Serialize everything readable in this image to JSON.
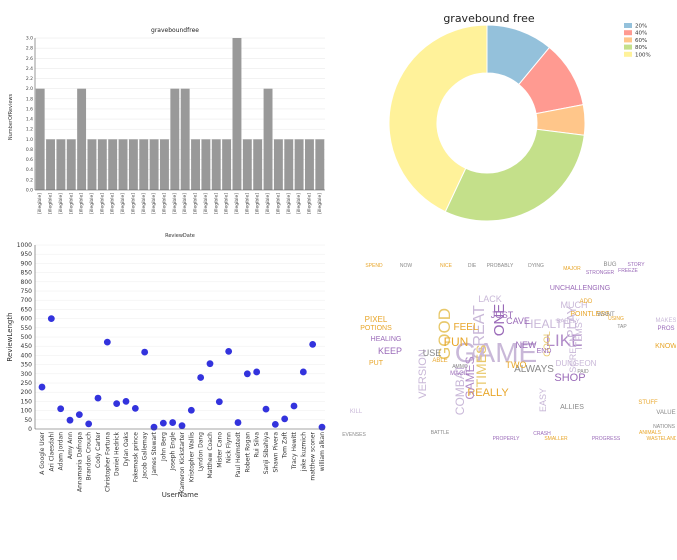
{
  "chart_data": [
    {
      "type": "bar",
      "title": "graveboundfree",
      "xlabel": "ReviewDate",
      "ylabel": "NumberOfReviews",
      "ylim": [
        0,
        3
      ],
      "yticks": [
        "0.0",
        "0.2",
        "0.4",
        "0.6",
        "0.8",
        "1.0",
        "1.2",
        "1.4",
        "1.6",
        "1.8",
        "2.0",
        "2.2",
        "2.4",
        "2.6",
        "2.8",
        "3.0"
      ],
      "categories": [
        "[illegible]",
        "[illegible]",
        "[illegible]",
        "[illegible]",
        "[illegible]",
        "[illegible]",
        "[illegible]",
        "[illegible]",
        "[illegible]",
        "[illegible]",
        "[illegible]",
        "[illegible]",
        "[illegible]",
        "[illegible]",
        "[illegible]",
        "[illegible]",
        "[illegible]",
        "[illegible]",
        "[illegible]",
        "[illegible]",
        "[illegible]",
        "[illegible]",
        "[illegible]",
        "[illegible]",
        "[illegible]",
        "[illegible]",
        "[illegible]",
        "[illegible]"
      ],
      "values": [
        2,
        1,
        1,
        1,
        2,
        1,
        1,
        1,
        1,
        1,
        1,
        1,
        1,
        2,
        2,
        1,
        1,
        1,
        1,
        3,
        1,
        1,
        2,
        1,
        1,
        1,
        1,
        1
      ],
      "bar_color": "#999999"
    },
    {
      "type": "pie",
      "donut": true,
      "title": "gravebound free",
      "legend_position": "top-right",
      "labels": [
        "20%",
        "40%",
        "60%",
        "80%",
        "100%"
      ],
      "values": [
        0.11,
        0.11,
        0.05,
        0.3,
        0.43
      ],
      "colors": [
        "#94c1db",
        "#ff9a91",
        "#ffc68a",
        "#c4e08a",
        "#fff29a"
      ]
    },
    {
      "type": "scatter",
      "xlabel": "UserName",
      "ylabel": "ReviewLength",
      "ylim": [
        0,
        1000
      ],
      "yticks": [
        "0",
        "50",
        "100",
        "150",
        "200",
        "250",
        "300",
        "350",
        "400",
        "450",
        "500",
        "550",
        "600",
        "650",
        "700",
        "750",
        "800",
        "850",
        "900",
        "950",
        "1000"
      ],
      "categories": [
        "A Google User",
        "Ari Claesdahl",
        "Adam Jordan",
        "Amy Ann",
        "Annamaria Dafnopa",
        "Brandon Crouch",
        "Cody Carter",
        "Christopher Fortuna",
        "Daniel Hedrick",
        "Dylan Oaks",
        "Fakemask prince",
        "Jacob Gallemay",
        "James Stewart",
        "John Berg",
        "Joseph Engle",
        "Kameron Kickstarter",
        "Kristopher Wallis",
        "Lyndon Dang",
        "Matthew Coach",
        "Mister Cano",
        "Nick Flynn",
        "Paul Helmstedt",
        "Robert Rogan",
        "Rui Silva",
        "Sanji Sibahiya",
        "Shawn Pivera",
        "Tom Zaft",
        "Tracy Hewitt",
        "jake kuzmich",
        "matthew sconer",
        "william alkan"
      ],
      "values": [
        228,
        600,
        110,
        48,
        78,
        28,
        168,
        472,
        138,
        150,
        112,
        418,
        10,
        32,
        35,
        18,
        102,
        280,
        355,
        148,
        422,
        35,
        300,
        310,
        108,
        25,
        55,
        125,
        310,
        460,
        10
      ],
      "point_color": "#3333dd"
    }
  ],
  "word_cloud": {
    "words": [
      {
        "text": "GAME",
        "size": 28,
        "color": "#c9b8d8"
      },
      {
        "text": "LIKE",
        "size": 17,
        "color": "#b08ac8"
      },
      {
        "text": "GOOD",
        "size": 17,
        "color": "#e8c86a"
      },
      {
        "text": "GREAT",
        "size": 16,
        "color": "#c9b8d8"
      },
      {
        "text": "ONE",
        "size": 15,
        "color": "#9a6ab8"
      },
      {
        "text": "TIMES",
        "size": 14,
        "color": "#e8c86a"
      },
      {
        "text": "FUN",
        "size": 12,
        "color": "#e8a62a"
      },
      {
        "text": "HEALTH",
        "size": 12,
        "color": "#c9b8d8"
      },
      {
        "text": "PLAY",
        "size": 13,
        "color": "#c9b8d8"
      },
      {
        "text": "REALLY",
        "size": 11,
        "color": "#e8a62a"
      },
      {
        "text": "SHOP",
        "size": 11,
        "color": "#9a6ab8"
      },
      {
        "text": "ALWAYS",
        "size": 10,
        "color": "#888888"
      },
      {
        "text": "GAMES",
        "size": 12,
        "color": "#b08ac8"
      },
      {
        "text": "VERSION",
        "size": 11,
        "color": "#c9b8d8"
      },
      {
        "text": "COMBAT",
        "size": 12,
        "color": "#c9b8d8"
      },
      {
        "text": "FEEL",
        "size": 10,
        "color": "#e8a62a"
      },
      {
        "text": "KEEP",
        "size": 9,
        "color": "#9a6ab8"
      },
      {
        "text": "JUST",
        "size": 9,
        "color": "#9a6ab8"
      },
      {
        "text": "CAVE",
        "size": 9,
        "color": "#9a6ab8"
      },
      {
        "text": "LACK",
        "size": 9,
        "color": "#c9b8d8"
      },
      {
        "text": "TWO",
        "size": 9,
        "color": "#e8a62a"
      },
      {
        "text": "USE",
        "size": 9,
        "color": "#888888"
      },
      {
        "text": "NEW",
        "size": 9,
        "color": "#9a6ab8"
      },
      {
        "text": "SCREEN",
        "size": 9,
        "color": "#c9b8d8"
      },
      {
        "text": "COOL",
        "size": 9,
        "color": "#e8c86a"
      },
      {
        "text": "EASY",
        "size": 9,
        "color": "#c9b8d8"
      },
      {
        "text": "DUNGEON",
        "size": 8,
        "color": "#c9b8d8"
      },
      {
        "text": "ITEMS",
        "size": 9,
        "color": "#c9b8d8"
      },
      {
        "text": "MUCH",
        "size": 9,
        "color": "#c9b8d8"
      },
      {
        "text": "PIXEL",
        "size": 8,
        "color": "#e8a62a"
      },
      {
        "text": "POTIONS",
        "size": 7,
        "color": "#e8a62a"
      },
      {
        "text": "HEALING",
        "size": 7,
        "color": "#9a6ab8"
      },
      {
        "text": "ALLIES",
        "size": 7,
        "color": "#888888"
      },
      {
        "text": "UNCHALLENGING",
        "size": 7,
        "color": "#9a6ab8"
      },
      {
        "text": "POINTLESS",
        "size": 7,
        "color": "#e8a62a"
      },
      {
        "text": "BARELY",
        "size": 6,
        "color": "#c9b8d8"
      },
      {
        "text": "WANT",
        "size": 6,
        "color": "#888888"
      },
      {
        "text": "PROS",
        "size": 6,
        "color": "#9a6ab8"
      },
      {
        "text": "STUFF",
        "size": 6,
        "color": "#e8a62a"
      },
      {
        "text": "VALUE",
        "size": 6,
        "color": "#888888"
      },
      {
        "text": "KNOW",
        "size": 7,
        "color": "#e8a62a"
      },
      {
        "text": "MAKES",
        "size": 6,
        "color": "#c9b8d8"
      },
      {
        "text": "ABLE",
        "size": 6,
        "color": "#e8a62a"
      },
      {
        "text": "MAGIC",
        "size": 6,
        "color": "#9a6ab8"
      },
      {
        "text": "KILL",
        "size": 6,
        "color": "#c9b8d8"
      },
      {
        "text": "PUT",
        "size": 7,
        "color": "#e8a62a"
      },
      {
        "text": "END",
        "size": 7,
        "color": "#9a6ab8"
      },
      {
        "text": "BUG",
        "size": 6,
        "color": "#888888"
      },
      {
        "text": "STORY",
        "size": 5,
        "color": "#9a6ab8"
      },
      {
        "text": "FREEZE",
        "size": 5,
        "color": "#9a6ab8"
      },
      {
        "text": "STRONGER",
        "size": 5,
        "color": "#9a6ab8"
      },
      {
        "text": "SMALLER",
        "size": 5,
        "color": "#e8a62a"
      },
      {
        "text": "PROGRESS",
        "size": 5,
        "color": "#9a6ab8"
      },
      {
        "text": "WASTELAND",
        "size": 5,
        "color": "#e8a62a"
      },
      {
        "text": "ANIMALS",
        "size": 5,
        "color": "#e8a62a"
      },
      {
        "text": "NATIONS",
        "size": 5,
        "color": "#888888"
      },
      {
        "text": "PROPERLY",
        "size": 5,
        "color": "#9a6ab8"
      },
      {
        "text": "CRASH",
        "size": 5,
        "color": "#9a6ab8"
      },
      {
        "text": "BATTLE",
        "size": 5,
        "color": "#888888"
      },
      {
        "text": "EVENSES",
        "size": 5,
        "color": "#888888"
      },
      {
        "text": "SPEND",
        "size": 5,
        "color": "#e8a62a"
      },
      {
        "text": "NOW",
        "size": 5,
        "color": "#888888"
      },
      {
        "text": "NICE",
        "size": 5,
        "color": "#e8a62a"
      },
      {
        "text": "DIE",
        "size": 5,
        "color": "#888888"
      },
      {
        "text": "PROBABLY",
        "size": 5,
        "color": "#888888"
      },
      {
        "text": "DYING",
        "size": 5,
        "color": "#888888"
      },
      {
        "text": "MAJOR",
        "size": 5,
        "color": "#e8a62a"
      },
      {
        "text": "USING",
        "size": 5,
        "color": "#e8a62a"
      },
      {
        "text": "ADD",
        "size": 6,
        "color": "#e8a62a"
      },
      {
        "text": "TAP",
        "size": 5,
        "color": "#888888"
      },
      {
        "text": "AMMO",
        "size": 5,
        "color": "#888888"
      },
      {
        "text": "PAID",
        "size": 5,
        "color": "#888888"
      }
    ]
  }
}
